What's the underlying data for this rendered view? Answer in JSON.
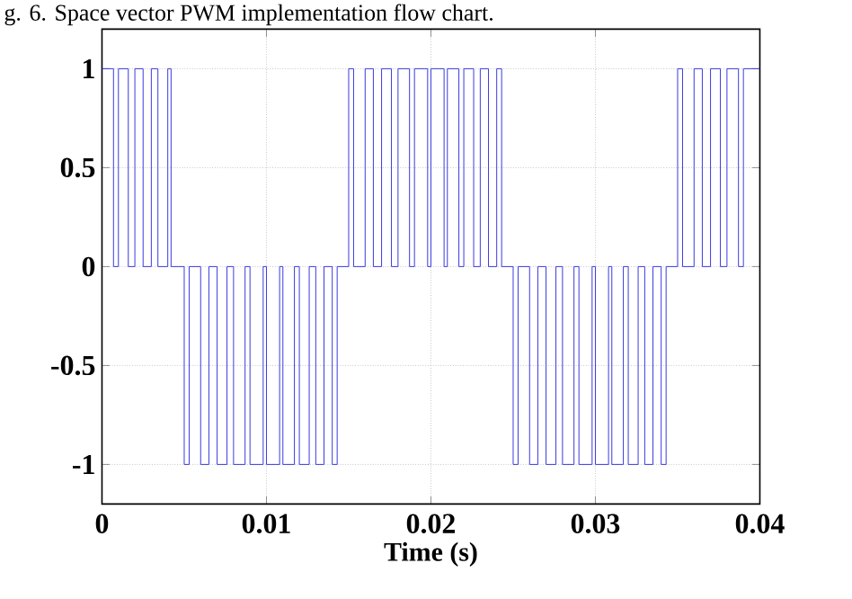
{
  "chart_data": {
    "type": "step",
    "annotations": [
      "g. 6. Space vector PWM implementation flow chart."
    ],
    "xlabel": "Time (s)",
    "xlim": [
      0,
      0.04
    ],
    "ylim": [
      -1.2,
      1.2
    ],
    "xticks": [
      0,
      0.01,
      0.02,
      0.03,
      0.04
    ],
    "yticks": [
      -1,
      -0.5,
      0,
      0.5,
      1
    ],
    "grid": true,
    "series": [
      {
        "color": "#3a3ae0",
        "x": [
          0,
          0.0007,
          0.001,
          0.0016,
          0.002,
          0.0025,
          0.003,
          0.0034,
          0.004,
          0.0042,
          0.005,
          0.0053,
          0.006,
          0.0065,
          0.007,
          0.0076,
          0.008,
          0.0087,
          0.009,
          0.0098,
          0.01,
          0.0108,
          0.011,
          0.0117,
          0.012,
          0.0126,
          0.013,
          0.0135,
          0.014,
          0.0143,
          0.015,
          0.0153,
          0.016,
          0.0165,
          0.017,
          0.0176,
          0.018,
          0.0187,
          0.019,
          0.0198,
          0.02,
          0.0208,
          0.021,
          0.0217,
          0.022,
          0.0226,
          0.023,
          0.0235,
          0.024,
          0.0243,
          0.025,
          0.0253,
          0.026,
          0.0265,
          0.027,
          0.0276,
          0.028,
          0.0287,
          0.029,
          0.0298,
          0.03,
          0.0308,
          0.031,
          0.0317,
          0.032,
          0.0326,
          0.033,
          0.0335,
          0.034,
          0.0343,
          0.035,
          0.0353,
          0.036,
          0.0365,
          0.037,
          0.0376,
          0.038,
          0.0387,
          0.039,
          0.04
        ],
        "values": [
          1,
          0,
          1,
          0,
          1,
          0,
          1,
          0,
          1,
          0,
          -1,
          0,
          -1,
          0,
          -1,
          0,
          -1,
          0,
          -1,
          0,
          -1,
          0,
          -1,
          0,
          -1,
          0,
          -1,
          0,
          -1,
          0,
          1,
          0,
          1,
          0,
          1,
          0,
          1,
          0,
          1,
          0,
          1,
          0,
          1,
          0,
          1,
          0,
          1,
          0,
          1,
          0,
          -1,
          0,
          -1,
          0,
          -1,
          0,
          -1,
          0,
          -1,
          0,
          -1,
          0,
          -1,
          0,
          -1,
          0,
          -1,
          0,
          -1,
          0,
          1,
          0,
          1,
          0,
          1,
          0,
          1,
          0,
          1,
          1
        ]
      }
    ]
  }
}
